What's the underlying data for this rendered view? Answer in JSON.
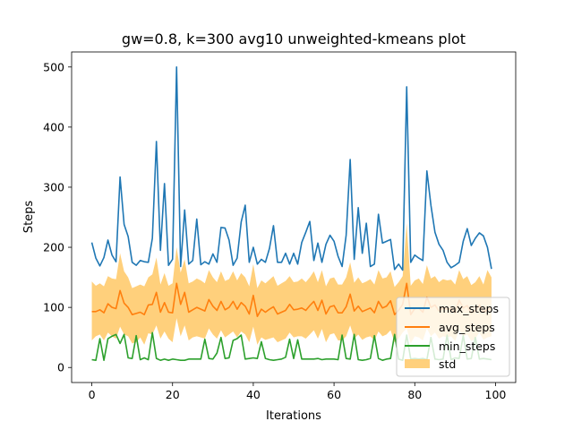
{
  "chart_data": {
    "type": "line",
    "title": "gw=0.8, k=300 avg10 unweighted-kmeans plot",
    "xlabel": "Iterations",
    "ylabel": "Steps",
    "xlim": [
      -5,
      105
    ],
    "ylim": [
      -25,
      525
    ],
    "xticks": [
      "0",
      "20",
      "40",
      "60",
      "80",
      "100"
    ],
    "yticks": [
      "0",
      "100",
      "200",
      "300",
      "400",
      "500"
    ],
    "grid": false,
    "legend_position": "bottom-right",
    "x": [
      0,
      1,
      2,
      3,
      4,
      5,
      6,
      7,
      8,
      9,
      10,
      11,
      12,
      13,
      14,
      15,
      16,
      17,
      18,
      19,
      20,
      21,
      22,
      23,
      24,
      25,
      26,
      27,
      28,
      29,
      30,
      31,
      32,
      33,
      34,
      35,
      36,
      37,
      38,
      39,
      40,
      41,
      42,
      43,
      44,
      45,
      46,
      47,
      48,
      49,
      50,
      51,
      52,
      53,
      54,
      55,
      56,
      57,
      58,
      59,
      60,
      61,
      62,
      63,
      64,
      65,
      66,
      67,
      68,
      69,
      70,
      71,
      72,
      73,
      74,
      75,
      76,
      77,
      78,
      79,
      80,
      81,
      82,
      83,
      84,
      85,
      86,
      87,
      88,
      89,
      90,
      91,
      92,
      93,
      94,
      95,
      96,
      97,
      98,
      99
    ],
    "series": [
      {
        "name": "max_steps",
        "color": "#1f77b4",
        "values": [
          208,
          182,
          169,
          183,
          212,
          187,
          176,
          317,
          238,
          218,
          175,
          170,
          178,
          176,
          175,
          215,
          376,
          195,
          306,
          170,
          180,
          500,
          168,
          262,
          172,
          178,
          247,
          171,
          176,
          172,
          189,
          175,
          233,
          232,
          212,
          170,
          182,
          242,
          270,
          175,
          200,
          172,
          180,
          175,
          198,
          236,
          175,
          175,
          190,
          172,
          190,
          172,
          208,
          225,
          243,
          178,
          207,
          175,
          205,
          220,
          210,
          185,
          168,
          220,
          346,
          180,
          266,
          190,
          240,
          168,
          172,
          255,
          207,
          210,
          213,
          163,
          172,
          162,
          467,
          175,
          187,
          182,
          178,
          327,
          270,
          225,
          205,
          195,
          175,
          166,
          170,
          175,
          210,
          231,
          203,
          215,
          224,
          219,
          200,
          164
        ]
      },
      {
        "name": "avg_steps",
        "color": "#ff7f0e",
        "values": [
          93,
          93,
          96,
          91,
          106,
          100,
          98,
          128,
          107,
          100,
          88,
          90,
          92,
          88,
          104,
          105,
          125,
          92,
          108,
          92,
          91,
          140,
          105,
          125,
          92,
          96,
          100,
          97,
          94,
          113,
          102,
          95,
          110,
          96,
          100,
          110,
          97,
          108,
          102,
          89,
          120,
          85,
          97,
          92,
          97,
          101,
          89,
          92,
          95,
          105,
          96,
          97,
          99,
          95,
          103,
          110,
          95,
          112,
          89,
          101,
          103,
          91,
          91,
          101,
          122,
          94,
          102,
          93,
          96,
          99,
          91,
          110,
          99,
          102,
          111,
          88,
          95,
          105,
          140,
          88,
          98,
          99,
          92,
          117,
          100,
          104,
          94,
          99,
          97,
          98,
          91,
          112,
          99,
          103,
          90,
          95,
          104,
          92,
          96,
          100
        ]
      },
      {
        "name": "min_steps",
        "color": "#2ca02c",
        "values": [
          13,
          12,
          48,
          12,
          48,
          52,
          55,
          40,
          55,
          16,
          15,
          53,
          13,
          16,
          13,
          58,
          15,
          12,
          14,
          12,
          14,
          13,
          12,
          12,
          14,
          14,
          14,
          14,
          47,
          15,
          14,
          24,
          50,
          15,
          16,
          45,
          48,
          54,
          14,
          15,
          16,
          15,
          43,
          15,
          13,
          12,
          13,
          14,
          17,
          47,
          15,
          46,
          14,
          14,
          14,
          14,
          15,
          13,
          14,
          14,
          14,
          13,
          54,
          15,
          14,
          55,
          13,
          12,
          13,
          15,
          53,
          15,
          12,
          14,
          15,
          55,
          14,
          12,
          54,
          14,
          15,
          14,
          15,
          13,
          50,
          14,
          13,
          14,
          54,
          13,
          16,
          15,
          53,
          14,
          15,
          50,
          14,
          15,
          14,
          13
        ]
      }
    ],
    "band": {
      "name": "std",
      "color": "#ffc865",
      "lower": [
        45,
        52,
        55,
        45,
        58,
        52,
        48,
        68,
        55,
        52,
        40,
        42,
        50,
        38,
        57,
        55,
        70,
        48,
        60,
        48,
        42,
        82,
        52,
        70,
        45,
        50,
        52,
        50,
        48,
        65,
        55,
        48,
        62,
        50,
        55,
        60,
        50,
        60,
        55,
        42,
        68,
        38,
        50,
        46,
        48,
        50,
        42,
        45,
        48,
        58,
        50,
        52,
        52,
        48,
        55,
        62,
        48,
        64,
        42,
        55,
        57,
        45,
        45,
        52,
        70,
        48,
        55,
        46,
        50,
        52,
        45,
        60,
        52,
        55,
        62,
        42,
        48,
        58,
        65,
        40,
        52,
        50,
        45,
        65,
        52,
        58,
        48,
        52,
        50,
        52,
        44,
        62,
        52,
        55,
        44,
        48,
        58,
        46,
        50,
        52
      ],
      "upper": [
        143,
        136,
        140,
        135,
        152,
        148,
        147,
        190,
        160,
        150,
        132,
        135,
        138,
        135,
        150,
        155,
        183,
        138,
        157,
        136,
        140,
        200,
        158,
        180,
        140,
        143,
        148,
        145,
        140,
        162,
        150,
        142,
        160,
        144,
        147,
        160,
        145,
        157,
        150,
        135,
        172,
        132,
        145,
        140,
        146,
        152,
        136,
        140,
        144,
        152,
        142,
        143,
        148,
        142,
        150,
        160,
        142,
        162,
        135,
        148,
        150,
        138,
        138,
        150,
        175,
        141,
        150,
        140,
        143,
        147,
        138,
        162,
        148,
        150,
        160,
        134,
        142,
        152,
        240,
        136,
        145,
        148,
        139,
        170,
        148,
        152,
        142,
        147,
        145,
        146,
        138,
        162,
        147,
        152,
        137,
        142,
        152,
        138,
        162,
        150
      ]
    }
  }
}
